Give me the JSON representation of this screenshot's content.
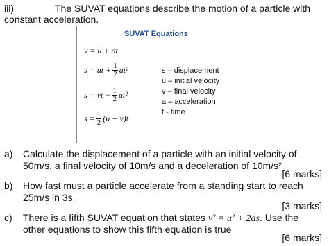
{
  "intro": {
    "number": "iii)",
    "text": "The SUVAT equations describe the motion of a particle with",
    "text2": "constant acceleration."
  },
  "box": {
    "title": "SUVAT Equations",
    "equations": [
      {
        "lhs": "v = u + at"
      },
      {
        "lhs": "s = ut +",
        "num": "1",
        "den": "2",
        "rest": "at²"
      },
      {
        "lhs": "s = vt −",
        "num": "1",
        "den": "2",
        "rest": "at²"
      },
      {
        "lhs": "s =",
        "num": "1",
        "den": "2",
        "rest": "(u + v)t"
      }
    ],
    "legend": [
      "s – displacement",
      "u – initial velocity",
      "v – final velocity",
      "a – acceleration",
      "t - time"
    ]
  },
  "questions": [
    {
      "label": "a)",
      "lines": [
        "Calculate the displacement of a particle with an initial velocity of",
        "50m/s, a final velocity of 10m/s and a deceleration of 10m/s²"
      ],
      "marks": "[6 marks]"
    },
    {
      "label": "b)",
      "lines": [
        "How fast must a particle accelerate from a standing start to reach",
        "25m/s in 3s."
      ],
      "marks": "[3 marks]"
    },
    {
      "label": "c)",
      "lines": [
        "There is a fifth SUVAT equation that states",
        "other equations to show this fifth equation is true"
      ],
      "equation": "v² = u² + 2as",
      "after": ".  Use the",
      "marks": "[6 marks]"
    }
  ]
}
